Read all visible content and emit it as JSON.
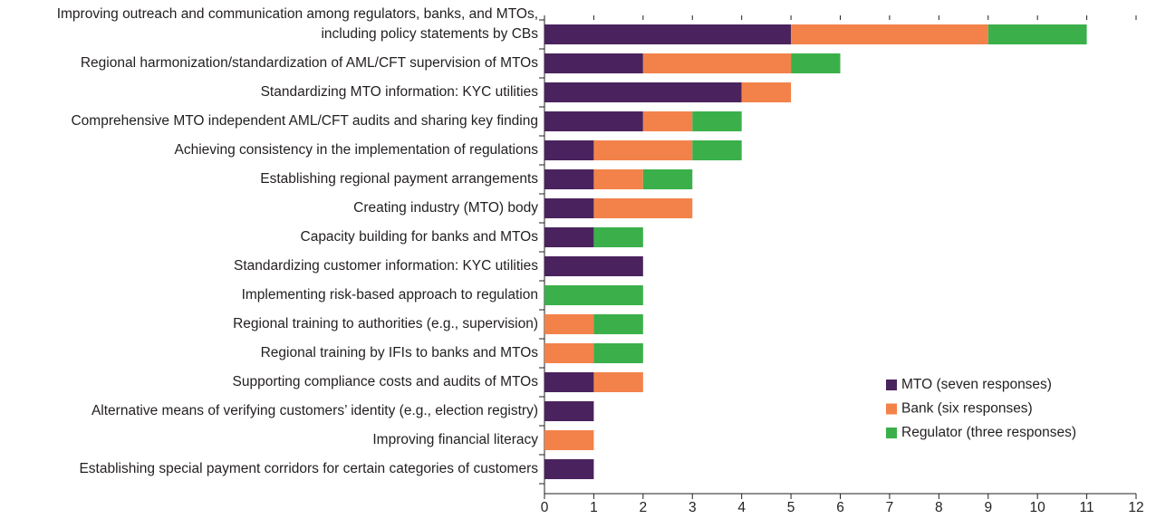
{
  "chart_data": {
    "type": "stacked_barh",
    "categories": [
      [
        "Improving outreach and communication among regulators, banks, and MTOs,",
        "including policy statements by CBs"
      ],
      "Regional harmonization/standardization of AML/CFT supervision of MTOs",
      "Standardizing MTO information: KYC utilities",
      "Comprehensive MTO independent AML/CFT audits and sharing key finding",
      "Achieving consistency in the implementation of regulations",
      "Establishing regional payment arrangements",
      "Creating industry (MTO) body",
      "Capacity building for banks and MTOs",
      "Standardizing customer information: KYC utilities",
      "Implementing risk-based approach to regulation",
      "Regional training to authorities (e.g., supervision)",
      "Regional training by IFIs to banks and MTOs",
      "Supporting compliance costs and audits of MTOs",
      "Alternative means of verifying customers’ identity (e.g., election registry)",
      "Improving financial literacy",
      "Establishing special payment corridors for certain categories of customers"
    ],
    "series": [
      {
        "name": "MTO (seven responses)",
        "color": "#4a235e",
        "values": [
          5,
          2,
          4,
          2,
          1,
          1,
          1,
          1,
          2,
          0,
          0,
          0,
          1,
          1,
          0,
          1
        ]
      },
      {
        "name": "Bank (six responses)",
        "color": "#f3824a",
        "values": [
          4,
          3,
          1,
          1,
          2,
          1,
          2,
          0,
          0,
          0,
          1,
          1,
          1,
          0,
          1,
          0
        ]
      },
      {
        "name": "Regulator (three responses)",
        "color": "#3bb04a",
        "values": [
          2,
          1,
          0,
          1,
          1,
          1,
          0,
          1,
          0,
          2,
          1,
          1,
          0,
          0,
          0,
          0
        ]
      }
    ],
    "xlim": [
      0,
      12
    ],
    "xticks": [
      0,
      1,
      2,
      3,
      4,
      5,
      6,
      7,
      8,
      9,
      10,
      11,
      12
    ],
    "legend": "lower right"
  }
}
